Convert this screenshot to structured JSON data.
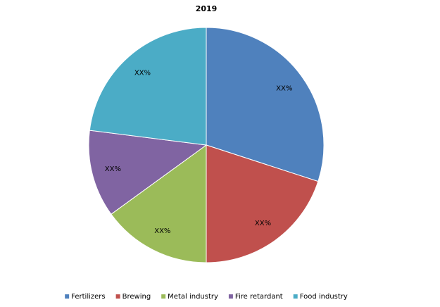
{
  "chart_data": {
    "type": "pie",
    "title": "2019",
    "categories": [
      "Fertilizers",
      "Brewing",
      "Metal industry",
      "Fire retardant",
      "Food industry"
    ],
    "values": [
      30,
      20,
      15,
      12,
      23
    ],
    "value_labels": [
      "XX%",
      "XX%",
      "XX%",
      "XX%",
      "XX%"
    ],
    "colors": [
      "#4f81bd",
      "#c0504d",
      "#9bbb59",
      "#8064a2",
      "#4bacc6"
    ],
    "legend": "bottom"
  }
}
